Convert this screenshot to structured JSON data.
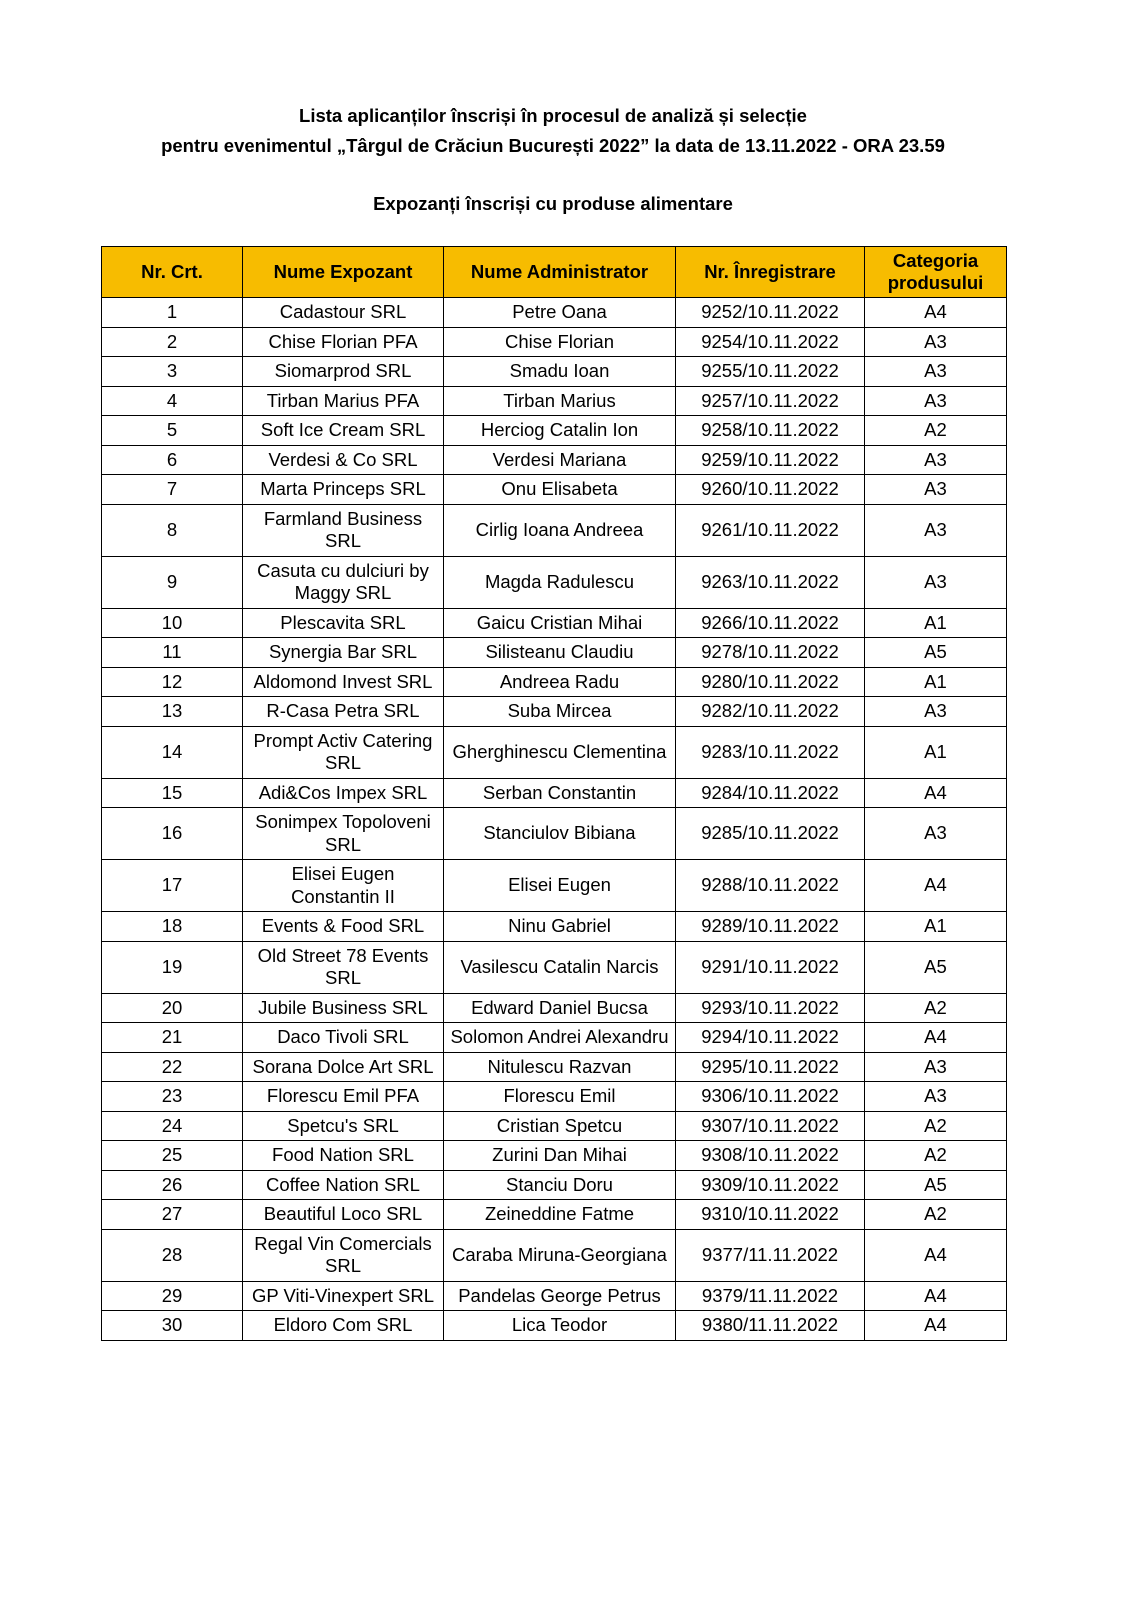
{
  "header": {
    "line1": "Lista aplicanților înscriși în procesul de analiză și selecție",
    "line2": "pentru evenimentul „Târgul de Crăciun București 2022” la data de 13.11.2022 - ORA 23.59",
    "section": "Expozanți înscriși cu produse alimentare"
  },
  "colors": {
    "header_bg": "#f7bc00"
  },
  "table": {
    "columns": [
      "Nr. Crt.",
      "Nume Expozant",
      "Nume Administrator",
      "Nr. Înregistrare",
      "Categoria produsului"
    ],
    "rows": [
      [
        "1",
        "Cadastour SRL",
        "Petre Oana",
        "9252/10.11.2022",
        "A4"
      ],
      [
        "2",
        "Chise Florian PFA",
        "Chise Florian",
        "9254/10.11.2022",
        "A3"
      ],
      [
        "3",
        "Siomarprod SRL",
        "Smadu Ioan",
        "9255/10.11.2022",
        "A3"
      ],
      [
        "4",
        "Tirban Marius PFA",
        "Tirban Marius",
        "9257/10.11.2022",
        "A3"
      ],
      [
        "5",
        "Soft Ice Cream SRL",
        "Herciog Catalin Ion",
        "9258/10.11.2022",
        "A2"
      ],
      [
        "6",
        "Verdesi & Co SRL",
        "Verdesi Mariana",
        "9259/10.11.2022",
        "A3"
      ],
      [
        "7",
        "Marta Princeps SRL",
        "Onu Elisabeta",
        "9260/10.11.2022",
        "A3"
      ],
      [
        "8",
        "Farmland Business SRL",
        "Cirlig Ioana Andreea",
        "9261/10.11.2022",
        "A3"
      ],
      [
        "9",
        "Casuta cu dulciuri by Maggy SRL",
        "Magda Radulescu",
        "9263/10.11.2022",
        "A3"
      ],
      [
        "10",
        "Plescavita SRL",
        "Gaicu Cristian Mihai",
        "9266/10.11.2022",
        "A1"
      ],
      [
        "11",
        "Synergia Bar SRL",
        "Silisteanu Claudiu",
        "9278/10.11.2022",
        "A5"
      ],
      [
        "12",
        "Aldomond Invest SRL",
        "Andreea Radu",
        "9280/10.11.2022",
        "A1"
      ],
      [
        "13",
        "R-Casa Petra SRL",
        "Suba Mircea",
        "9282/10.11.2022",
        "A3"
      ],
      [
        "14",
        "Prompt Activ Catering SRL",
        "Gherghinescu Clementina",
        "9283/10.11.2022",
        "A1"
      ],
      [
        "15",
        "Adi&Cos Impex SRL",
        "Serban Constantin",
        "9284/10.11.2022",
        "A4"
      ],
      [
        "16",
        "Sonimpex Topoloveni SRL",
        "Stanciulov Bibiana",
        "9285/10.11.2022",
        "A3"
      ],
      [
        "17",
        "Elisei Eugen Constantin II",
        "Elisei Eugen",
        "9288/10.11.2022",
        "A4"
      ],
      [
        "18",
        "Events & Food SRL",
        "Ninu Gabriel",
        "9289/10.11.2022",
        "A1"
      ],
      [
        "19",
        "Old Street 78 Events SRL",
        "Vasilescu Catalin Narcis",
        "9291/10.11.2022",
        "A5"
      ],
      [
        "20",
        "Jubile Business SRL",
        "Edward Daniel Bucsa",
        "9293/10.11.2022",
        "A2"
      ],
      [
        "21",
        "Daco Tivoli SRL",
        "Solomon Andrei Alexandru",
        "9294/10.11.2022",
        "A4"
      ],
      [
        "22",
        "Sorana Dolce Art SRL",
        "Nitulescu Razvan",
        "9295/10.11.2022",
        "A3"
      ],
      [
        "23",
        "Florescu Emil PFA",
        "Florescu Emil",
        "9306/10.11.2022",
        "A3"
      ],
      [
        "24",
        "Spetcu's SRL",
        "Cristian Spetcu",
        "9307/10.11.2022",
        "A2"
      ],
      [
        "25",
        "Food Nation SRL",
        "Zurini Dan Mihai",
        "9308/10.11.2022",
        "A2"
      ],
      [
        "26",
        "Coffee Nation SRL",
        "Stanciu Doru",
        "9309/10.11.2022",
        "A5"
      ],
      [
        "27",
        "Beautiful Loco SRL",
        "Zeineddine Fatme",
        "9310/10.11.2022",
        "A2"
      ],
      [
        "28",
        "Regal Vin Comercials SRL",
        "Caraba Miruna-Georgiana",
        "9377/11.11.2022",
        "A4"
      ],
      [
        "29",
        "GP Viti-Vinexpert SRL",
        "Pandelas George Petrus",
        "9379/11.11.2022",
        "A4"
      ],
      [
        "30",
        "Eldoro Com SRL",
        "Lica Teodor",
        "9380/11.11.2022",
        "A4"
      ]
    ]
  }
}
